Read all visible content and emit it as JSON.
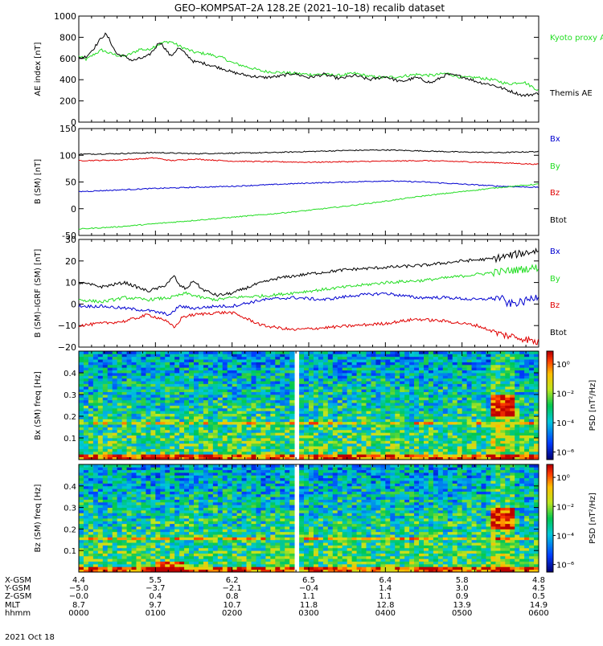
{
  "title": "GEO–KOMPSAT–2A 128.2E (2021–10–18) recalib dataset",
  "time_axis": {
    "start_hhmm": "0000",
    "end_hhmm": "0600",
    "ticks": [
      "0000",
      "0100",
      "0200",
      "0300",
      "0400",
      "0500",
      "0600"
    ]
  },
  "colors": {
    "black": "#000000",
    "red": "#e00000",
    "blue": "#0000d0",
    "green": "#22dd22",
    "kyoto": "#22dd22"
  },
  "chart_data": [
    {
      "type": "line",
      "ylabel": "AE index [nT]",
      "ylim": [
        0,
        1000
      ],
      "yticks": [
        "0",
        "200",
        "400",
        "600",
        "800",
        "1000"
      ],
      "series": [
        {
          "name": "Kyoto proxy AE",
          "color": "#22dd22",
          "x_hours": [
            0,
            0.1,
            0.2,
            0.3,
            0.4,
            0.5,
            0.6,
            0.7,
            0.8,
            0.9,
            1,
            1.1,
            1.2,
            1.3,
            1.4,
            1.5,
            1.6,
            1.7,
            1.8,
            1.9,
            2,
            2.2,
            2.4,
            2.6,
            2.8,
            3,
            3.2,
            3.4,
            3.6,
            3.8,
            4,
            4.2,
            4.4,
            4.6,
            4.8,
            5,
            5.2,
            5.4,
            5.6,
            5.8,
            6
          ],
          "values": [
            620,
            590,
            640,
            680,
            650,
            630,
            620,
            650,
            690,
            680,
            720,
            750,
            760,
            720,
            690,
            660,
            650,
            640,
            620,
            600,
            560,
            520,
            480,
            470,
            460,
            450,
            450,
            440,
            460,
            430,
            420,
            430,
            450,
            440,
            460,
            420,
            420,
            400,
            360,
            380,
            300
          ]
        },
        {
          "name": "Themis AE",
          "color": "#000000",
          "x_hours": [
            0,
            0.1,
            0.2,
            0.3,
            0.35,
            0.4,
            0.45,
            0.5,
            0.6,
            0.7,
            0.8,
            0.9,
            1,
            1.05,
            1.1,
            1.2,
            1.3,
            1.4,
            1.5,
            1.6,
            1.7,
            1.8,
            1.9,
            2,
            2.2,
            2.4,
            2.6,
            2.8,
            3,
            3.2,
            3.4,
            3.6,
            3.8,
            4,
            4.2,
            4.4,
            4.6,
            4.8,
            5,
            5.2,
            5.4,
            5.6,
            5.8,
            6
          ],
          "values": [
            600,
            620,
            700,
            800,
            830,
            780,
            700,
            640,
            620,
            580,
            600,
            620,
            700,
            760,
            720,
            620,
            700,
            640,
            570,
            560,
            540,
            520,
            500,
            470,
            440,
            420,
            430,
            460,
            420,
            450,
            410,
            440,
            400,
            430,
            380,
            420,
            370,
            450,
            430,
            380,
            350,
            300,
            250,
            270
          ]
        }
      ],
      "legend": [
        "Kyoto proxy AE",
        "Themis AE"
      ]
    },
    {
      "type": "line",
      "ylabel": "B (SM) [nT]",
      "ylim": [
        -50,
        150
      ],
      "yticks": [
        "-50",
        "0",
        "50",
        "100",
        "150"
      ],
      "series": [
        {
          "name": "Btot",
          "color": "#000000",
          "x_hours": [
            0,
            0.5,
            1,
            1.5,
            2,
            2.5,
            3,
            3.5,
            4,
            4.5,
            5,
            5.5,
            6
          ],
          "values": [
            102,
            103,
            105,
            103,
            104,
            105,
            107,
            109,
            110,
            108,
            106,
            105,
            107
          ]
        },
        {
          "name": "Bx",
          "color": "#e00000",
          "x_hours": [
            0,
            0.5,
            1,
            1.2,
            1.5,
            2,
            2.5,
            3,
            3.5,
            4,
            4.5,
            5,
            5.5,
            6
          ],
          "values": [
            90,
            91,
            95,
            90,
            93,
            89,
            88,
            87,
            88,
            89,
            90,
            88,
            86,
            83
          ]
        },
        {
          "name": "Bz",
          "color": "#0000d0",
          "x_hours": [
            0,
            0.5,
            1,
            1.5,
            2,
            2.5,
            3,
            3.5,
            4,
            4.5,
            5,
            5.5,
            6
          ],
          "values": [
            32,
            35,
            38,
            40,
            42,
            45,
            48,
            50,
            52,
            50,
            46,
            42,
            40
          ]
        },
        {
          "name": "By",
          "color": "#22dd22",
          "x_hours": [
            0,
            0.5,
            1,
            1.5,
            2,
            2.5,
            3,
            3.5,
            4,
            4.5,
            5,
            5.5,
            6
          ],
          "values": [
            -38,
            -34,
            -28,
            -22,
            -16,
            -10,
            -3,
            5,
            14,
            24,
            32,
            40,
            46
          ]
        }
      ],
      "legend": [
        "Bx",
        "By",
        "Bz",
        "Btot"
      ]
    },
    {
      "type": "line",
      "ylabel": "B (SM)–IGRF (SM) [nT]",
      "ylim": [
        -20,
        30
      ],
      "yticks": [
        "−20",
        "−10",
        "0",
        "10",
        "20",
        "30"
      ],
      "series": [
        {
          "name": "Btot",
          "color": "#000000",
          "x_hours": [
            0,
            0.3,
            0.6,
            0.9,
            1.1,
            1.25,
            1.3,
            1.4,
            1.5,
            1.6,
            1.8,
            2,
            2.3,
            2.6,
            3,
            3.5,
            4,
            4.5,
            5,
            5.4,
            5.7,
            6
          ],
          "values": [
            10,
            8,
            10,
            6,
            8,
            13,
            9,
            7,
            11,
            7,
            4,
            5,
            9,
            12,
            14,
            16,
            17,
            18,
            20,
            21,
            23,
            25
          ]
        },
        {
          "name": "By",
          "color": "#22dd22",
          "x_hours": [
            0,
            0.3,
            0.6,
            0.9,
            1.2,
            1.4,
            1.6,
            1.8,
            2,
            2.5,
            3,
            3.5,
            4,
            4.5,
            5,
            5.5,
            6
          ],
          "values": [
            2,
            1,
            3,
            2,
            3,
            5,
            3,
            2,
            3,
            4,
            6,
            8,
            10,
            11,
            13,
            15,
            17
          ]
        },
        {
          "name": "Bz",
          "color": "#0000d0",
          "x_hours": [
            0,
            0.3,
            0.6,
            0.9,
            1.2,
            1.3,
            1.5,
            1.8,
            2,
            2.4,
            2.8,
            3.2,
            3.6,
            4,
            4.4,
            4.8,
            5.2,
            5.5,
            5.6,
            5.8,
            6
          ],
          "values": [
            -1,
            -1,
            -2,
            -3,
            -5,
            -1,
            -2,
            -1,
            -1,
            2,
            3,
            2,
            4,
            5,
            3,
            3,
            2,
            3,
            0,
            1,
            4
          ]
        },
        {
          "name": "Bx",
          "color": "#e00000",
          "x_hours": [
            0,
            0.3,
            0.6,
            0.9,
            1.1,
            1.25,
            1.35,
            1.5,
            1.8,
            2,
            2.4,
            2.8,
            3.2,
            3.6,
            4,
            4.4,
            4.8,
            5.2,
            5.5,
            5.8,
            6
          ],
          "values": [
            -10,
            -9,
            -8,
            -5,
            -7,
            -11,
            -6,
            -5,
            -4,
            -4,
            -10,
            -12,
            -11,
            -10,
            -9,
            -7,
            -8,
            -10,
            -14,
            -16,
            -18
          ]
        }
      ],
      "legend": [
        "Bx",
        "By",
        "Bz",
        "Btot"
      ]
    },
    {
      "type": "heatmap",
      "ylabel": "Bx (SM) freq [Hz]",
      "ylim": [
        0,
        0.5
      ],
      "yticks": [
        "0.1",
        "0.2",
        "0.3",
        "0.4"
      ],
      "gap_hours": [
        2.79,
        2.86
      ],
      "colorbar": {
        "label": "PSD [nT²/Hz]",
        "ticks": [
          "10⁰",
          "10⁻²",
          "10⁻⁴",
          "10⁻⁶"
        ]
      }
    },
    {
      "type": "heatmap",
      "ylabel": "Bz (SM) freq [Hz]",
      "ylim": [
        0,
        0.5
      ],
      "yticks": [
        "0.1",
        "0.2",
        "0.3",
        "0.4"
      ],
      "gap_hours": [
        2.79,
        2.86
      ],
      "colorbar": {
        "label": "PSD [nT²/Hz]",
        "ticks": [
          "10⁰",
          "10⁻²",
          "10⁻⁴",
          "10⁻⁶"
        ]
      }
    }
  ],
  "ephemeris": {
    "labels": [
      "X-GSM",
      "Y-GSM",
      "Z-GSM",
      "MLT",
      "hhmm"
    ],
    "columns": [
      [
        "4.4",
        "−5.0",
        "−0.0",
        "8.7",
        "0000"
      ],
      [
        "5.5",
        "−3.7",
        "0.4",
        "9.7",
        "0100"
      ],
      [
        "6.2",
        "−2.1",
        "0.8",
        "10.7",
        "0200"
      ],
      [
        "6.5",
        "−0.4",
        "1.1",
        "11.8",
        "0300"
      ],
      [
        "6.4",
        "1.4",
        "1.1",
        "12.8",
        "0400"
      ],
      [
        "5.8",
        "3.0",
        "0.9",
        "13.9",
        "0500"
      ],
      [
        "4.8",
        "4.5",
        "0.5",
        "14.9",
        "0600"
      ]
    ],
    "date": "2021 Oct 18"
  }
}
